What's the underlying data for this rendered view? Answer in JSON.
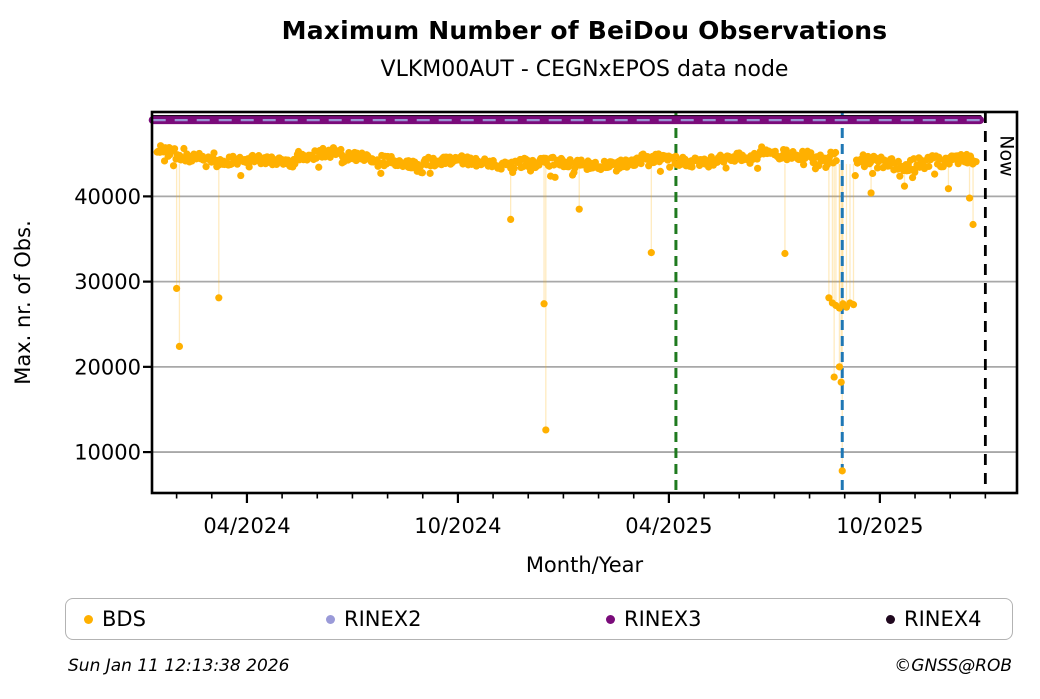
{
  "header": {
    "title": "Maximum Number of BeiDou Observations",
    "subtitle": "VLKM00AUT - CEGNxEPOS data node"
  },
  "footer": {
    "timestamp": "Sun Jan 11 12:13:38 2026",
    "credit": "©GNSS@ROB"
  },
  "chart_data": {
    "type": "scatter",
    "title": "Maximum Number of BeiDou Observations",
    "subtitle": "VLKM00AUT - CEGNxEPOS data node",
    "xlabel": "Month/Year",
    "ylabel": "Max. nr. of Obs.",
    "grid": "horizontal-only",
    "legend_position": "bottom",
    "x_axis": {
      "unit": "months-since-2024-01-01",
      "lim": [
        0.3,
        24.9
      ],
      "major_ticks": [
        {
          "m": 3,
          "label": "04/2024"
        },
        {
          "m": 9,
          "label": "10/2024"
        },
        {
          "m": 15,
          "label": "04/2025"
        },
        {
          "m": 21,
          "label": "10/2025"
        }
      ],
      "minor_tick_months": [
        1,
        2,
        3,
        4,
        5,
        6,
        7,
        8,
        9,
        10,
        11,
        12,
        13,
        14,
        15,
        16,
        17,
        18,
        19,
        20,
        21,
        22,
        23,
        24
      ]
    },
    "y_axis": {
      "lim": [
        5200,
        49900
      ],
      "ticks": [
        10000,
        20000,
        30000,
        40000
      ]
    },
    "series": [
      {
        "name": "BDS",
        "color": "#FFB000",
        "marker_radius": 3.6,
        "connector_color": "#FFB000",
        "band_segments": [
          {
            "m0": 0.45,
            "m1": 1.3,
            "mean": 45000,
            "amp": 750
          },
          {
            "m0": 1.3,
            "m1": 2.1,
            "mean": 44700,
            "amp": 600
          },
          {
            "m0": 2.1,
            "m1": 4.4,
            "mean": 44100,
            "amp": 500
          },
          {
            "m0": 4.4,
            "m1": 5.7,
            "mean": 45100,
            "amp": 600
          },
          {
            "m0": 5.7,
            "m1": 7.6,
            "mean": 44300,
            "amp": 600
          },
          {
            "m0": 7.6,
            "m1": 11.0,
            "mean": 44000,
            "amp": 550
          },
          {
            "m0": 11.0,
            "m1": 12.4,
            "mean": 43800,
            "amp": 550
          },
          {
            "m0": 12.4,
            "m1": 14.2,
            "mean": 43900,
            "amp": 500
          },
          {
            "m0": 14.2,
            "m1": 16.2,
            "mean": 44200,
            "amp": 550
          },
          {
            "m0": 16.2,
            "m1": 17.6,
            "mean": 44400,
            "amp": 550
          },
          {
            "m0": 17.6,
            "m1": 19.1,
            "mean": 45000,
            "amp": 650
          },
          {
            "m0": 19.1,
            "m1": 19.78,
            "mean": 44500,
            "amp": 800
          },
          {
            "m0": 20.3,
            "m1": 23.75,
            "mean": 44000,
            "amp": 750
          }
        ],
        "outliers": [
          [
            1.0,
            29200
          ],
          [
            1.08,
            22400
          ],
          [
            2.2,
            28100
          ],
          [
            10.5,
            37300
          ],
          [
            11.45,
            27400
          ],
          [
            11.5,
            12600
          ],
          [
            12.45,
            38500
          ],
          [
            14.5,
            33400
          ],
          [
            18.3,
            33300
          ],
          [
            20.75,
            40400
          ],
          [
            21.7,
            41200
          ],
          [
            22.95,
            40900
          ],
          [
            23.55,
            39800
          ],
          [
            23.65,
            36700
          ]
        ],
        "cluster_points": [
          [
            19.55,
            28100
          ],
          [
            19.65,
            27500
          ],
          [
            19.75,
            27200
          ],
          [
            19.85,
            26900
          ],
          [
            19.95,
            27400
          ],
          [
            20.05,
            27000
          ],
          [
            20.15,
            27500
          ],
          [
            20.25,
            27300
          ],
          [
            19.85,
            20000
          ],
          [
            19.7,
            18800
          ],
          [
            19.9,
            18200
          ],
          [
            19.93,
            7800
          ]
        ]
      },
      {
        "name": "RINEX2",
        "color": "#9A9AD8",
        "type": "line-dashed",
        "value": 48950,
        "span": [
          0.32,
          23.85
        ]
      },
      {
        "name": "RINEX3",
        "color": "#7A0B7A",
        "type": "line",
        "value": 48950,
        "width": 8,
        "span": [
          0.32,
          23.85
        ]
      },
      {
        "name": "RINEX4",
        "color": "#20081F",
        "type": "line",
        "value": 49350,
        "width": 3.5,
        "span": [
          0.32,
          23.85
        ]
      }
    ],
    "annotations": {
      "green_line": {
        "m": 15.2,
        "color": "#1F7A1F",
        "style": "dashed"
      },
      "blue_line": {
        "m": 19.93,
        "color": "#1F77B4",
        "style": "dashed"
      },
      "now_line": {
        "m": 24.0,
        "color": "#000000",
        "style": "dashed",
        "label": "Now"
      }
    },
    "legend": [
      {
        "label": "BDS",
        "color": "#FFB000"
      },
      {
        "label": "RINEX2",
        "color": "#9A9AD8"
      },
      {
        "label": "RINEX3",
        "color": "#7A0B7A"
      },
      {
        "label": "RINEX4",
        "color": "#20081F"
      }
    ]
  }
}
